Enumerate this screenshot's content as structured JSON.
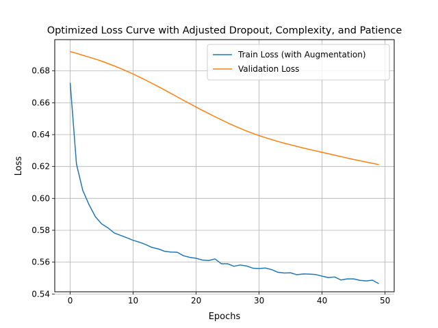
{
  "chart_data": {
    "type": "line",
    "title": "Optimized Loss Curve with Adjusted Dropout, Complexity, and Patience",
    "xlabel": "Epochs",
    "ylabel": "Loss",
    "xlim": [
      -2.45,
      51.45
    ],
    "ylim": [
      0.5414,
      0.6996
    ],
    "xticks": [
      0,
      10,
      20,
      30,
      40,
      50
    ],
    "xtick_labels": [
      "0",
      "10",
      "20",
      "30",
      "40",
      "50"
    ],
    "yticks": [
      0.54,
      0.56,
      0.58,
      0.6,
      0.62,
      0.64,
      0.66,
      0.68
    ],
    "ytick_labels": [
      "0.54",
      "0.56",
      "0.58",
      "0.60",
      "0.62",
      "0.64",
      "0.66",
      "0.68"
    ],
    "grid": true,
    "legend_position": "top-right",
    "x": [
      0,
      1,
      2,
      3,
      4,
      5,
      6,
      7,
      8,
      9,
      10,
      11,
      12,
      13,
      14,
      15,
      16,
      17,
      18,
      19,
      20,
      21,
      22,
      23,
      24,
      25,
      26,
      27,
      28,
      29,
      30,
      31,
      32,
      33,
      34,
      35,
      36,
      37,
      38,
      39,
      40,
      41,
      42,
      43,
      44,
      45,
      46,
      47,
      48,
      49
    ],
    "series": [
      {
        "name": "Train Loss (with Augmentation)",
        "color": "#1f77b4",
        "values": [
          0.6725,
          0.6215,
          0.605,
          0.596,
          0.5885,
          0.584,
          0.5815,
          0.5783,
          0.5768,
          0.5753,
          0.5737,
          0.5725,
          0.571,
          0.5692,
          0.5683,
          0.5668,
          0.5663,
          0.5662,
          0.564,
          0.563,
          0.5624,
          0.5613,
          0.561,
          0.562,
          0.559,
          0.559,
          0.5574,
          0.5582,
          0.5576,
          0.5562,
          0.556,
          0.5563,
          0.5553,
          0.5536,
          0.5532,
          0.5533,
          0.5521,
          0.5526,
          0.5525,
          0.5522,
          0.5512,
          0.5503,
          0.5507,
          0.5488,
          0.5495,
          0.5495,
          0.5486,
          0.5482,
          0.5487,
          0.5465
        ]
      },
      {
        "name": "Validation Loss",
        "color": "#ff7f0e",
        "values": [
          0.6921,
          0.691,
          0.6898,
          0.6886,
          0.6874,
          0.6861,
          0.6846,
          0.6831,
          0.6815,
          0.6798,
          0.678,
          0.6761,
          0.6742,
          0.6721,
          0.6701,
          0.668,
          0.6658,
          0.6637,
          0.6615,
          0.6594,
          0.6573,
          0.6552,
          0.6532,
          0.6512,
          0.6493,
          0.6474,
          0.6456,
          0.6439,
          0.6423,
          0.6408,
          0.6394,
          0.6381,
          0.6369,
          0.6357,
          0.6346,
          0.6336,
          0.6326,
          0.6316,
          0.6307,
          0.6298,
          0.6289,
          0.628,
          0.6271,
          0.6262,
          0.6253,
          0.6244,
          0.6236,
          0.6228,
          0.622,
          0.6212
        ]
      }
    ]
  }
}
